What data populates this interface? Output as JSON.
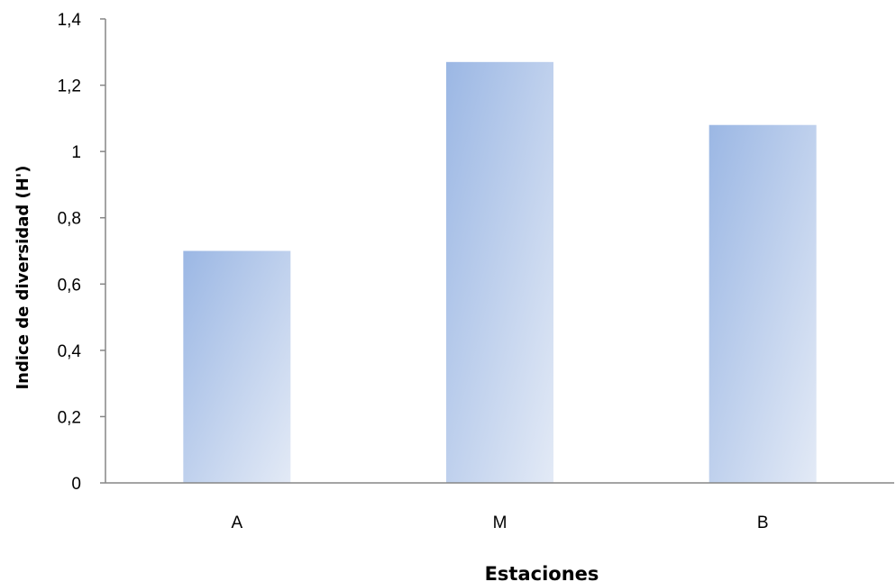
{
  "chart_data": {
    "type": "bar",
    "categories": [
      "A",
      "M",
      "B"
    ],
    "values": [
      0.7,
      1.27,
      1.08
    ],
    "title": "",
    "xlabel": "Estaciones",
    "ylabel": "Indice de diversidad  (H')",
    "ylim": [
      0,
      1.4
    ],
    "yticks": [
      "0",
      "0,2",
      "0,4",
      "0,6",
      "0,8",
      "1",
      "1,2",
      "1,4"
    ],
    "grid": false,
    "legend": "none",
    "colors": {
      "bar_start": "#9bb7e4",
      "bar_end": "#e3eaf6",
      "axis": "#868686"
    }
  }
}
